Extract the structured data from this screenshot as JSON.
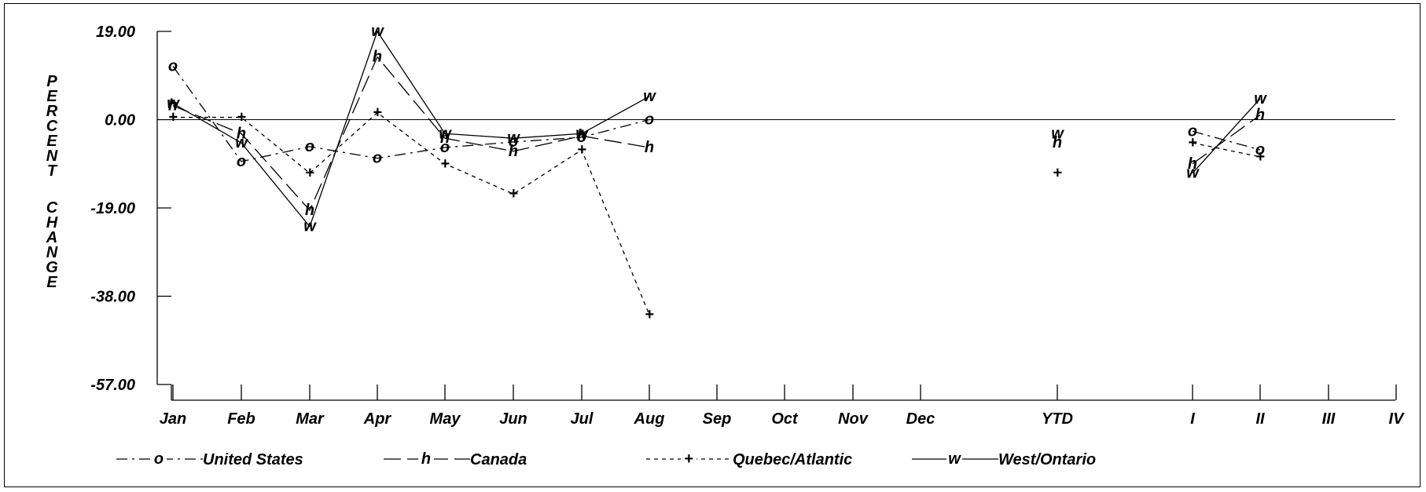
{
  "chart_data": {
    "type": "line",
    "ylabel": "PERCENT CHANGE",
    "xlabel": "",
    "title": "",
    "ylim": [
      -57,
      19
    ],
    "y_ticks": [
      "19.00",
      "0.00",
      "-19.00",
      "-38.00",
      "-57.00"
    ],
    "y_tick_values": [
      19,
      0,
      -19,
      -38,
      -57
    ],
    "categories": [
      "Jan",
      "Feb",
      "Mar",
      "Apr",
      "May",
      "Jun",
      "Jul",
      "Aug",
      "Sep",
      "Oct",
      "Nov",
      "Dec",
      "YTD",
      "I",
      "II",
      "III",
      "IV"
    ],
    "grid": false,
    "reference_line": 0,
    "legend_position": "bottom",
    "series": [
      {
        "name": "United States",
        "marker": "o",
        "dash": "dash-dot",
        "connected": [
          11.5,
          -9.0,
          -5.8,
          -8.3,
          -6.0,
          -4.8,
          -3.8,
          0.0
        ],
        "ytd": null,
        "quarters": [
          -2.5,
          -6.5
        ]
      },
      {
        "name": "Canada",
        "marker": "h",
        "dash": "long-dash",
        "connected": [
          3.0,
          -3.0,
          -19.5,
          13.5,
          -4.0,
          -6.8,
          -3.5,
          -6.0
        ],
        "ytd": -5.0,
        "quarters": [
          -9.5,
          1.0
        ]
      },
      {
        "name": "Quebec/Atlantic",
        "marker": "+",
        "dash": "short-dash",
        "connected": [
          0.5,
          0.5,
          -11.5,
          1.5,
          -9.5,
          -16.0,
          -6.5,
          -42.0
        ],
        "ytd": -11.5,
        "quarters": [
          -5.0,
          -8.0
        ]
      },
      {
        "name": "West/Ontario",
        "marker": "w",
        "dash": "solid",
        "connected": [
          3.5,
          -5.0,
          -23.0,
          19.0,
          -3.0,
          -4.0,
          -3.0,
          5.0
        ],
        "ytd": -3.0,
        "quarters": [
          -11.5,
          4.5
        ]
      }
    ]
  }
}
